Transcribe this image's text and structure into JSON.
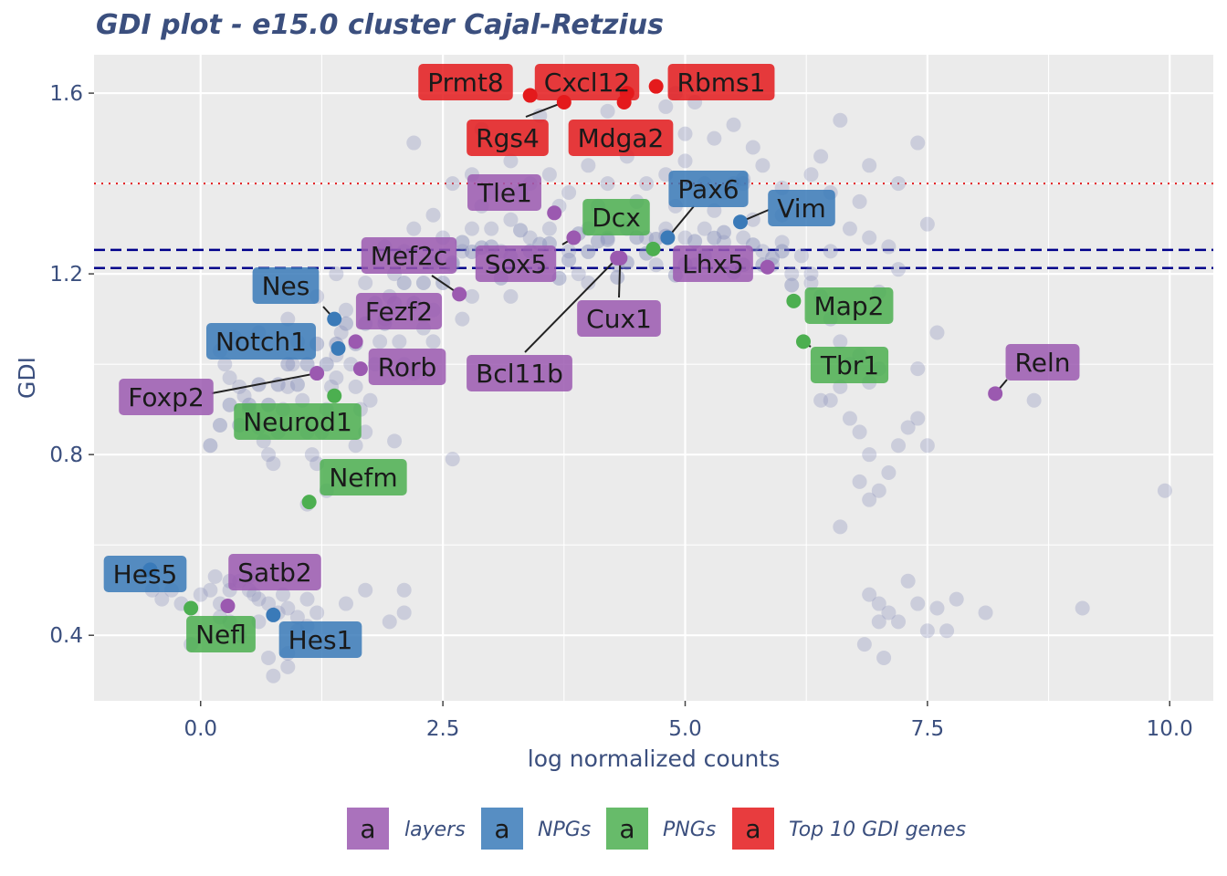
{
  "chart_data": {
    "type": "scatter",
    "title": "GDI plot - e15.0 cluster Cajal-Retzius",
    "xlabel": "log normalized counts",
    "ylabel": "GDI",
    "xlim": [
      -1.1,
      10.45
    ],
    "ylim": [
      0.255,
      1.685
    ],
    "x_ticks": [
      0.0,
      2.5,
      5.0,
      7.5,
      10.0
    ],
    "x_tick_labels": [
      "0.0",
      "2.5",
      "5.0",
      "7.5",
      "10.0"
    ],
    "y_ticks": [
      0.4,
      0.8,
      1.2,
      1.6
    ],
    "y_tick_labels": [
      "0.4",
      "0.8",
      "1.2",
      "1.6"
    ],
    "grid": true,
    "legend_position": "bottom",
    "colors": {
      "layers": "#9b59b0",
      "NPGs": "#3a7ab8",
      "PNGs": "#4caf50",
      "top10": "#e41a1c",
      "background_points": "#8e96bd",
      "panel": "#ebebeb",
      "line_dashed": "#00008b",
      "line_dotted": "#e41a1c"
    },
    "reference_lines": [
      {
        "style": "dashed",
        "y": 1.253
      },
      {
        "style": "dashed",
        "y": 1.213
      },
      {
        "style": "dotted",
        "y": 1.4
      }
    ],
    "legend": [
      {
        "key": "a",
        "label": "layers",
        "group": "layers"
      },
      {
        "key": "a",
        "label": "NPGs",
        "group": "NPGs"
      },
      {
        "key": "a",
        "label": "PNGs",
        "group": "PNGs"
      },
      {
        "key": "a",
        "label": "Top 10 GDI genes",
        "group": "top10"
      }
    ],
    "background_points": [
      [
        -0.55,
        0.54
      ],
      [
        -0.5,
        0.5
      ],
      [
        -0.4,
        0.48
      ],
      [
        -0.3,
        0.5
      ],
      [
        -0.2,
        0.47
      ],
      [
        -0.1,
        0.46
      ],
      [
        0.0,
        0.49
      ],
      [
        0.1,
        0.5
      ],
      [
        0.2,
        0.47
      ],
      [
        0.3,
        0.5
      ],
      [
        0.4,
        0.52
      ],
      [
        0.5,
        0.5
      ],
      [
        0.6,
        0.48
      ],
      [
        0.7,
        0.47
      ],
      [
        0.8,
        0.45
      ],
      [
        0.9,
        0.46
      ],
      [
        1.0,
        0.44
      ],
      [
        -0.1,
        0.38
      ],
      [
        0.2,
        0.44
      ],
      [
        0.4,
        0.4
      ],
      [
        0.6,
        0.43
      ],
      [
        0.7,
        0.35
      ],
      [
        0.75,
        0.31
      ],
      [
        0.9,
        0.33
      ],
      [
        0.9,
        0.36
      ],
      [
        1.0,
        0.41
      ],
      [
        1.1,
        0.42
      ],
      [
        1.2,
        0.45
      ],
      [
        1.5,
        0.47
      ],
      [
        1.7,
        0.5
      ],
      [
        2.1,
        0.5
      ],
      [
        2.1,
        0.45
      ],
      [
        1.95,
        0.43
      ],
      [
        1.1,
        0.48
      ],
      [
        0.3,
        0.52
      ],
      [
        0.5,
        0.53
      ],
      [
        0.15,
        0.53
      ],
      [
        0.3,
        0.43
      ],
      [
        0.55,
        0.49
      ],
      [
        0.85,
        0.49
      ],
      [
        0.2,
        1.03
      ],
      [
        0.25,
        1.0
      ],
      [
        0.3,
        0.97
      ],
      [
        0.35,
        1.06
      ],
      [
        0.4,
        0.95
      ],
      [
        0.45,
        0.93
      ],
      [
        0.5,
        0.9
      ],
      [
        0.55,
        0.88
      ],
      [
        0.6,
        0.86
      ],
      [
        0.65,
        0.83
      ],
      [
        0.7,
        0.8
      ],
      [
        0.75,
        0.78
      ],
      [
        0.8,
        0.85
      ],
      [
        0.85,
        0.9
      ],
      [
        0.9,
        0.95
      ],
      [
        0.95,
        1.0
      ],
      [
        1.0,
        1.05
      ],
      [
        1.05,
        0.92
      ],
      [
        1.1,
        0.85
      ],
      [
        1.15,
        0.8
      ],
      [
        1.2,
        0.78
      ],
      [
        1.25,
        0.85
      ],
      [
        1.3,
        0.9
      ],
      [
        1.35,
        0.95
      ],
      [
        1.4,
        1.02
      ],
      [
        1.45,
        1.07
      ],
      [
        1.5,
        1.12
      ],
      [
        1.55,
        1.0
      ],
      [
        1.6,
        0.95
      ],
      [
        1.65,
        0.9
      ],
      [
        1.7,
        0.85
      ],
      [
        1.75,
        0.92
      ],
      [
        1.8,
        1.0
      ],
      [
        1.85,
        1.05
      ],
      [
        1.9,
        1.1
      ],
      [
        1.95,
        1.15
      ],
      [
        2.0,
        1.2
      ],
      [
        2.05,
        1.05
      ],
      [
        2.1,
        1.0
      ],
      [
        2.2,
        0.98
      ],
      [
        2.3,
        1.08
      ],
      [
        2.4,
        1.12
      ],
      [
        0.6,
        1.07
      ],
      [
        0.9,
        1.1
      ],
      [
        1.2,
        1.15
      ],
      [
        1.4,
        1.2
      ],
      [
        1.7,
        1.18
      ],
      [
        1.9,
        1.26
      ],
      [
        2.1,
        1.25
      ],
      [
        2.2,
        1.3
      ],
      [
        2.4,
        1.33
      ],
      [
        2.5,
        1.28
      ],
      [
        2.6,
        1.22
      ],
      [
        2.7,
        1.25
      ],
      [
        2.8,
        1.3
      ],
      [
        2.9,
        1.35
      ],
      [
        3.0,
        1.3
      ],
      [
        3.1,
        1.25
      ],
      [
        3.2,
        1.32
      ],
      [
        3.3,
        1.38
      ],
      [
        3.4,
        1.28
      ],
      [
        3.5,
        1.22
      ],
      [
        3.6,
        1.3
      ],
      [
        3.7,
        1.35
      ],
      [
        3.8,
        1.25
      ],
      [
        3.9,
        1.2
      ],
      [
        4.0,
        1.3
      ],
      [
        4.1,
        1.35
      ],
      [
        4.2,
        1.28
      ],
      [
        4.3,
        1.22
      ],
      [
        4.4,
        1.3
      ],
      [
        4.5,
        1.36
      ],
      [
        4.6,
        1.28
      ],
      [
        4.7,
        1.22
      ],
      [
        4.8,
        1.3
      ],
      [
        4.9,
        1.35
      ],
      [
        5.0,
        1.28
      ],
      [
        5.1,
        1.22
      ],
      [
        5.2,
        1.3
      ],
      [
        5.3,
        1.34
      ],
      [
        5.4,
        1.27
      ],
      [
        5.5,
        1.22
      ],
      [
        5.6,
        1.28
      ],
      [
        5.7,
        1.32
      ],
      [
        5.8,
        1.25
      ],
      [
        5.9,
        1.22
      ],
      [
        6.0,
        1.27
      ],
      [
        6.1,
        1.2
      ],
      [
        6.2,
        1.24
      ],
      [
        6.3,
        1.18
      ],
      [
        2.6,
        1.4
      ],
      [
        2.8,
        1.42
      ],
      [
        3.0,
        1.38
      ],
      [
        3.2,
        1.45
      ],
      [
        3.4,
        1.4
      ],
      [
        3.6,
        1.42
      ],
      [
        3.8,
        1.38
      ],
      [
        4.0,
        1.44
      ],
      [
        4.2,
        1.4
      ],
      [
        4.4,
        1.46
      ],
      [
        4.6,
        1.4
      ],
      [
        4.8,
        1.42
      ],
      [
        5.0,
        1.45
      ],
      [
        5.2,
        1.4
      ],
      [
        5.4,
        1.38
      ],
      [
        5.6,
        1.41
      ],
      [
        5.8,
        1.44
      ],
      [
        6.0,
        1.39
      ],
      [
        6.3,
        1.42
      ],
      [
        6.5,
        1.38
      ],
      [
        2.2,
        1.49
      ],
      [
        2.9,
        1.52
      ],
      [
        3.5,
        1.55
      ],
      [
        4.2,
        1.56
      ],
      [
        4.8,
        1.57
      ],
      [
        5.0,
        1.51
      ],
      [
        5.3,
        1.5
      ],
      [
        5.5,
        1.53
      ],
      [
        5.7,
        1.48
      ],
      [
        6.6,
        1.54
      ],
      [
        4.9,
        1.6
      ],
      [
        6.4,
        1.46
      ],
      [
        6.9,
        1.44
      ],
      [
        7.2,
        1.4
      ],
      [
        7.4,
        1.49
      ],
      [
        7.5,
        1.31
      ],
      [
        6.9,
        1.28
      ],
      [
        7.1,
        1.26
      ],
      [
        6.7,
        1.3
      ],
      [
        6.5,
        1.25
      ],
      [
        6.3,
        1.2
      ],
      [
        6.4,
        1.15
      ],
      [
        6.5,
        1.1
      ],
      [
        6.6,
        1.05
      ],
      [
        6.7,
        1.0
      ],
      [
        6.6,
        0.95
      ],
      [
        6.5,
        0.92
      ],
      [
        6.7,
        0.88
      ],
      [
        6.8,
        0.85
      ],
      [
        6.9,
        0.8
      ],
      [
        6.8,
        0.74
      ],
      [
        6.9,
        0.7
      ],
      [
        7.0,
        0.72
      ],
      [
        7.1,
        0.76
      ],
      [
        7.2,
        0.82
      ],
      [
        7.3,
        0.86
      ],
      [
        7.4,
        0.88
      ],
      [
        7.5,
        0.82
      ],
      [
        7.4,
        0.99
      ],
      [
        7.6,
        1.07
      ],
      [
        7.2,
        1.21
      ],
      [
        7.0,
        1.16
      ],
      [
        6.6,
        0.64
      ],
      [
        6.9,
        0.49
      ],
      [
        7.0,
        0.47
      ],
      [
        7.1,
        0.45
      ],
      [
        7.2,
        0.43
      ],
      [
        7.3,
        0.52
      ],
      [
        7.4,
        0.47
      ],
      [
        7.6,
        0.46
      ],
      [
        7.8,
        0.48
      ],
      [
        7.5,
        0.41
      ],
      [
        7.7,
        0.41
      ],
      [
        7.05,
        0.35
      ],
      [
        6.85,
        0.38
      ],
      [
        7.0,
        0.43
      ],
      [
        8.1,
        0.45
      ],
      [
        8.6,
        0.92
      ],
      [
        9.1,
        0.46
      ],
      [
        9.95,
        0.72
      ],
      [
        1.1,
        0.69
      ],
      [
        2.6,
        0.79
      ],
      [
        2.0,
        0.83
      ],
      [
        6.9,
        0.96
      ],
      [
        7.0,
        0.99
      ],
      [
        6.8,
        1.02
      ],
      [
        6.4,
        0.92
      ],
      [
        3.2,
        1.15
      ],
      [
        4.0,
        1.18
      ],
      [
        2.8,
        1.15
      ],
      [
        5.5,
        1.4
      ],
      [
        6.8,
        1.36
      ],
      [
        5.1,
        1.58
      ],
      [
        5.6,
        1.4
      ],
      [
        6.0,
        1.33
      ],
      [
        2.7,
        1.1
      ],
      [
        2.4,
        1.05
      ],
      [
        1.6,
        0.82
      ],
      [
        1.3,
        0.72
      ],
      [
        1.4,
        0.97
      ]
    ],
    "labeled_points": [
      {
        "gene": "Prmt8",
        "group": "top10",
        "x": 3.4,
        "y": 1.595
      },
      {
        "gene": "Cxcl12",
        "group": "top10",
        "x": 4.4,
        "y": 1.6
      },
      {
        "gene": "Rbms1",
        "group": "top10",
        "x": 4.7,
        "y": 1.615
      },
      {
        "gene": "Rgs4",
        "group": "top10",
        "x": 3.75,
        "y": 1.58
      },
      {
        "gene": "Mdga2",
        "group": "top10",
        "x": 4.37,
        "y": 1.58
      },
      {
        "gene": "Tle1",
        "group": "layers",
        "x": 3.65,
        "y": 1.335
      },
      {
        "gene": "Pax6",
        "group": "NPGs",
        "x": 4.82,
        "y": 1.28
      },
      {
        "gene": "Vim",
        "group": "NPGs",
        "x": 5.57,
        "y": 1.315
      },
      {
        "gene": "Dcx",
        "group": "PNGs",
        "x": 4.67,
        "y": 1.255
      },
      {
        "gene": "Sox5",
        "group": "layers",
        "x": 3.85,
        "y": 1.28
      },
      {
        "gene": "Mef2c",
        "group": "layers",
        "x": 2.67,
        "y": 1.155
      },
      {
        "gene": "Lhx5",
        "group": "layers",
        "x": 5.85,
        "y": 1.215
      },
      {
        "gene": "Cux1",
        "group": "layers",
        "x": 4.33,
        "y": 1.235
      },
      {
        "gene": "Bcl11b",
        "group": "layers",
        "x": 4.3,
        "y": 1.235
      },
      {
        "gene": "Nes",
        "group": "NPGs",
        "x": 1.38,
        "y": 1.1
      },
      {
        "gene": "Fezf2",
        "group": "layers",
        "x": 1.6,
        "y": 1.05
      },
      {
        "gene": "Notch1",
        "group": "NPGs",
        "x": 1.42,
        "y": 1.035
      },
      {
        "gene": "Rorb",
        "group": "layers",
        "x": 1.65,
        "y": 0.99
      },
      {
        "gene": "Foxp2",
        "group": "layers",
        "x": 1.2,
        "y": 0.98
      },
      {
        "gene": "Neurod1",
        "group": "PNGs",
        "x": 1.38,
        "y": 0.93
      },
      {
        "gene": "Nefm",
        "group": "PNGs",
        "x": 1.12,
        "y": 0.695
      },
      {
        "gene": "Map2",
        "group": "PNGs",
        "x": 6.12,
        "y": 1.14
      },
      {
        "gene": "Tbr1",
        "group": "PNGs",
        "x": 6.22,
        "y": 1.05
      },
      {
        "gene": "Reln",
        "group": "layers",
        "x": 8.2,
        "y": 0.935
      },
      {
        "gene": "Hes5",
        "group": "NPGs",
        "x": -0.52,
        "y": 0.545
      },
      {
        "gene": "Satb2",
        "group": "layers",
        "x": 0.28,
        "y": 0.465
      },
      {
        "gene": "Nefl",
        "group": "PNGs",
        "x": -0.1,
        "y": 0.46
      },
      {
        "gene": "Hes1",
        "group": "NPGs",
        "x": 0.75,
        "y": 0.445
      }
    ]
  }
}
